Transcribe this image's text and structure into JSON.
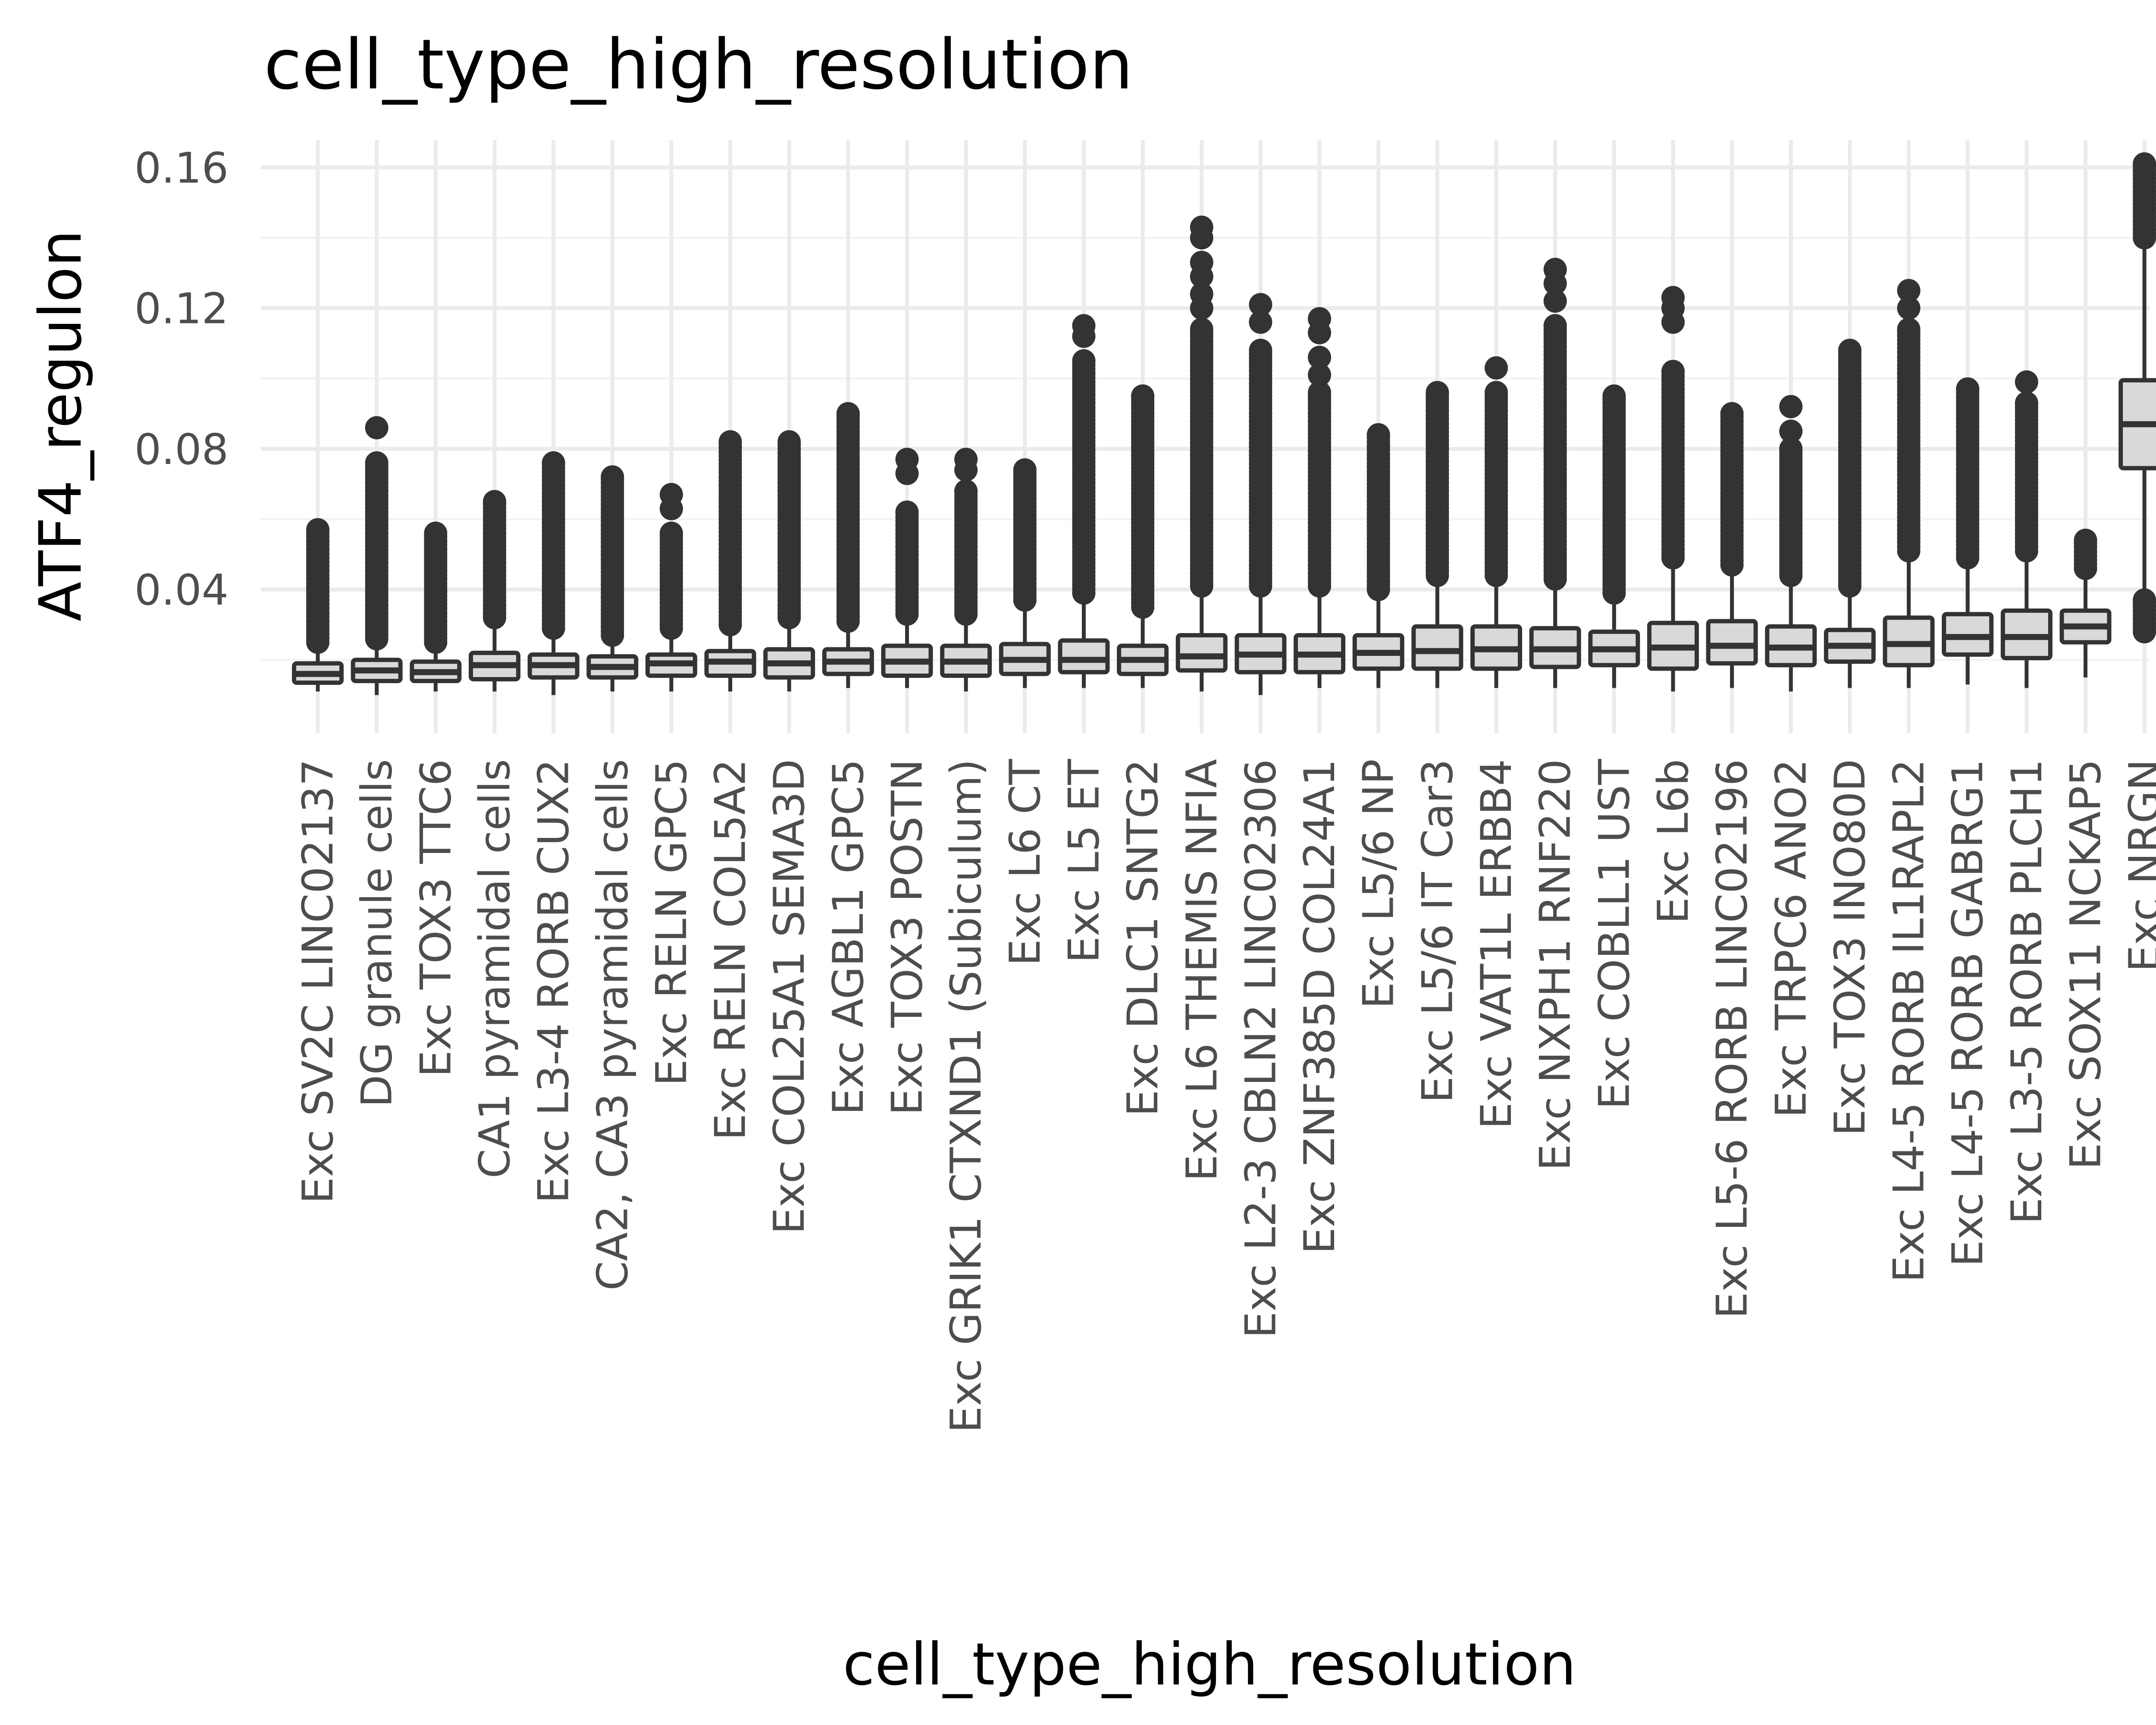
{
  "chart_data": {
    "type": "box",
    "title": "cell_type_high_resolution",
    "xlabel": "cell_type_high_resolution",
    "ylabel": "ATF4_regulon",
    "ylim": [
      0.01,
      0.166
    ],
    "y_ticks": [
      0.04,
      0.08,
      0.12,
      0.16
    ],
    "y_tick_labels": [
      "0.04",
      "0.08",
      "0.12",
      "0.16"
    ],
    "grid": true,
    "legend": "none",
    "colors": {
      "box_fill": "#d9d9d9",
      "box_stroke": "#333333",
      "outlier": "#333333"
    },
    "categories": [
      "Exc SV2C LINC02137",
      "DG granule cells",
      "Exc TOX3 TTC6",
      "CA1 pyramidal cells",
      "Exc L3-4 RORB CUX2",
      "CA2, CA3 pyramidal cells",
      "Exc RELN GPC5",
      "Exc RELN COL5A2",
      "Exc COL25A1 SEMA3D",
      "Exc AGBL1 GPC5",
      "Exc TOX3 POSTN",
      "Exc GRIK1 CTXND1 (Subiculum)",
      "Exc L6 CT",
      "Exc L5 ET",
      "Exc DLC1 SNTG2",
      "Exc L6 THEMIS NFIA",
      "Exc L2-3 CBLN2 LINC02306",
      "Exc ZNF385D COL24A1",
      "Exc L5/6 NP",
      "Exc L5/6 IT Car3",
      "Exc VAT1L ERBB4",
      "Exc NXPH1 RNF220",
      "Exc COBLL1 UST",
      "Exc L6b",
      "Exc L5-6 RORB LINC02196",
      "Exc TRPC6 ANO2",
      "Exc TOX3 INO80D",
      "Exc L4-5 RORB IL1RAPL2",
      "Exc L4-5 RORB GABRG1",
      "Exc L3-5 RORB PLCH1",
      "Exc SOX11 NCKAP5",
      "Exc NRGN"
    ],
    "boxes": [
      {
        "lw": 0.011,
        "q1": 0.0135,
        "med": 0.016,
        "q3": 0.019,
        "uw": 0.024,
        "outlier_range": [
          0.025,
          0.057
        ],
        "sparse_outliers": []
      },
      {
        "lw": 0.01,
        "q1": 0.014,
        "med": 0.017,
        "q3": 0.02,
        "uw": 0.025,
        "outlier_range": [
          0.026,
          0.076
        ],
        "sparse_outliers": [
          0.086
        ]
      },
      {
        "lw": 0.011,
        "q1": 0.014,
        "med": 0.0165,
        "q3": 0.0195,
        "uw": 0.024,
        "outlier_range": [
          0.025,
          0.056
        ],
        "sparse_outliers": []
      },
      {
        "lw": 0.011,
        "q1": 0.0145,
        "med": 0.0185,
        "q3": 0.022,
        "uw": 0.031,
        "outlier_range": [
          0.032,
          0.065
        ],
        "sparse_outliers": []
      },
      {
        "lw": 0.01,
        "q1": 0.015,
        "med": 0.0185,
        "q3": 0.0215,
        "uw": 0.028,
        "outlier_range": [
          0.029,
          0.076
        ],
        "sparse_outliers": []
      },
      {
        "lw": 0.011,
        "q1": 0.015,
        "med": 0.018,
        "q3": 0.021,
        "uw": 0.026,
        "outlier_range": [
          0.027,
          0.072
        ],
        "sparse_outliers": []
      },
      {
        "lw": 0.011,
        "q1": 0.0155,
        "med": 0.019,
        "q3": 0.0215,
        "uw": 0.028,
        "outlier_range": [
          0.029,
          0.056
        ],
        "sparse_outliers": [
          0.063,
          0.067
        ]
      },
      {
        "lw": 0.011,
        "q1": 0.0155,
        "med": 0.0195,
        "q3": 0.0225,
        "uw": 0.029,
        "outlier_range": [
          0.03,
          0.082
        ],
        "sparse_outliers": []
      },
      {
        "lw": 0.011,
        "q1": 0.015,
        "med": 0.019,
        "q3": 0.023,
        "uw": 0.031,
        "outlier_range": [
          0.032,
          0.082
        ],
        "sparse_outliers": []
      },
      {
        "lw": 0.012,
        "q1": 0.016,
        "med": 0.0195,
        "q3": 0.023,
        "uw": 0.03,
        "outlier_range": [
          0.031,
          0.09
        ],
        "sparse_outliers": []
      },
      {
        "lw": 0.012,
        "q1": 0.0155,
        "med": 0.0195,
        "q3": 0.024,
        "uw": 0.032,
        "outlier_range": [
          0.033,
          0.062
        ],
        "sparse_outliers": [
          0.073,
          0.077
        ]
      },
      {
        "lw": 0.011,
        "q1": 0.0155,
        "med": 0.0195,
        "q3": 0.024,
        "uw": 0.032,
        "outlier_range": [
          0.033,
          0.068
        ],
        "sparse_outliers": [
          0.074,
          0.077
        ]
      },
      {
        "lw": 0.012,
        "q1": 0.016,
        "med": 0.02,
        "q3": 0.0245,
        "uw": 0.036,
        "outlier_range": [
          0.037,
          0.074
        ],
        "sparse_outliers": []
      },
      {
        "lw": 0.012,
        "q1": 0.0165,
        "med": 0.02,
        "q3": 0.0255,
        "uw": 0.038,
        "outlier_range": [
          0.039,
          0.105
        ],
        "sparse_outliers": [
          0.112,
          0.115
        ]
      },
      {
        "lw": 0.012,
        "q1": 0.016,
        "med": 0.02,
        "q3": 0.024,
        "uw": 0.034,
        "outlier_range": [
          0.035,
          0.095
        ],
        "sparse_outliers": []
      },
      {
        "lw": 0.011,
        "q1": 0.017,
        "med": 0.021,
        "q3": 0.027,
        "uw": 0.04,
        "outlier_range": [
          0.041,
          0.114
        ],
        "sparse_outliers": [
          0.12,
          0.124,
          0.129,
          0.133,
          0.14,
          0.143
        ]
      },
      {
        "lw": 0.01,
        "q1": 0.0165,
        "med": 0.0215,
        "q3": 0.027,
        "uw": 0.04,
        "outlier_range": [
          0.041,
          0.108
        ],
        "sparse_outliers": [
          0.116,
          0.121
        ]
      },
      {
        "lw": 0.012,
        "q1": 0.0165,
        "med": 0.0215,
        "q3": 0.027,
        "uw": 0.04,
        "outlier_range": [
          0.041,
          0.096
        ],
        "sparse_outliers": [
          0.101,
          0.106,
          0.113,
          0.117
        ]
      },
      {
        "lw": 0.012,
        "q1": 0.0175,
        "med": 0.022,
        "q3": 0.027,
        "uw": 0.039,
        "outlier_range": [
          0.04,
          0.084
        ],
        "sparse_outliers": []
      },
      {
        "lw": 0.012,
        "q1": 0.0175,
        "med": 0.0225,
        "q3": 0.0295,
        "uw": 0.043,
        "outlier_range": [
          0.044,
          0.096
        ],
        "sparse_outliers": []
      },
      {
        "lw": 0.012,
        "q1": 0.0175,
        "med": 0.023,
        "q3": 0.0295,
        "uw": 0.043,
        "outlier_range": [
          0.044,
          0.096
        ],
        "sparse_outliers": [
          0.103
        ]
      },
      {
        "lw": 0.012,
        "q1": 0.018,
        "med": 0.023,
        "q3": 0.029,
        "uw": 0.042,
        "outlier_range": [
          0.043,
          0.115
        ],
        "sparse_outliers": [
          0.122,
          0.127,
          0.131
        ]
      },
      {
        "lw": 0.012,
        "q1": 0.0185,
        "med": 0.023,
        "q3": 0.028,
        "uw": 0.038,
        "outlier_range": [
          0.039,
          0.095
        ],
        "sparse_outliers": []
      },
      {
        "lw": 0.011,
        "q1": 0.0175,
        "med": 0.0235,
        "q3": 0.0305,
        "uw": 0.048,
        "outlier_range": [
          0.049,
          0.102
        ],
        "sparse_outliers": [
          0.116,
          0.12,
          0.123
        ]
      },
      {
        "lw": 0.012,
        "q1": 0.019,
        "med": 0.024,
        "q3": 0.031,
        "uw": 0.046,
        "outlier_range": [
          0.047,
          0.09
        ],
        "sparse_outliers": []
      },
      {
        "lw": 0.011,
        "q1": 0.0185,
        "med": 0.0235,
        "q3": 0.0295,
        "uw": 0.043,
        "outlier_range": [
          0.044,
          0.08
        ],
        "sparse_outliers": [
          0.085,
          0.092
        ]
      },
      {
        "lw": 0.012,
        "q1": 0.0195,
        "med": 0.024,
        "q3": 0.0285,
        "uw": 0.04,
        "outlier_range": [
          0.041,
          0.108
        ],
        "sparse_outliers": []
      },
      {
        "lw": 0.012,
        "q1": 0.0185,
        "med": 0.0245,
        "q3": 0.032,
        "uw": 0.05,
        "outlier_range": [
          0.051,
          0.114
        ],
        "sparse_outliers": [
          0.12,
          0.125
        ]
      },
      {
        "lw": 0.013,
        "q1": 0.0215,
        "med": 0.0265,
        "q3": 0.033,
        "uw": 0.048,
        "outlier_range": [
          0.049,
          0.097
        ],
        "sparse_outliers": []
      },
      {
        "lw": 0.012,
        "q1": 0.0205,
        "med": 0.0265,
        "q3": 0.034,
        "uw": 0.05,
        "outlier_range": [
          0.051,
          0.093
        ],
        "sparse_outliers": [
          0.099
        ]
      },
      {
        "lw": 0.015,
        "q1": 0.025,
        "med": 0.0295,
        "q3": 0.034,
        "uw": 0.043,
        "outlier_range": [
          0.046,
          0.054
        ],
        "sparse_outliers": []
      },
      {
        "lw": 0.04,
        "q1": 0.0745,
        "med": 0.087,
        "q3": 0.0995,
        "uw": 0.137,
        "outlier_range": [
          0.14,
          0.161
        ],
        "sparse_outliers": [],
        "low_outlier_range": [
          0.028,
          0.037
        ]
      }
    ]
  }
}
